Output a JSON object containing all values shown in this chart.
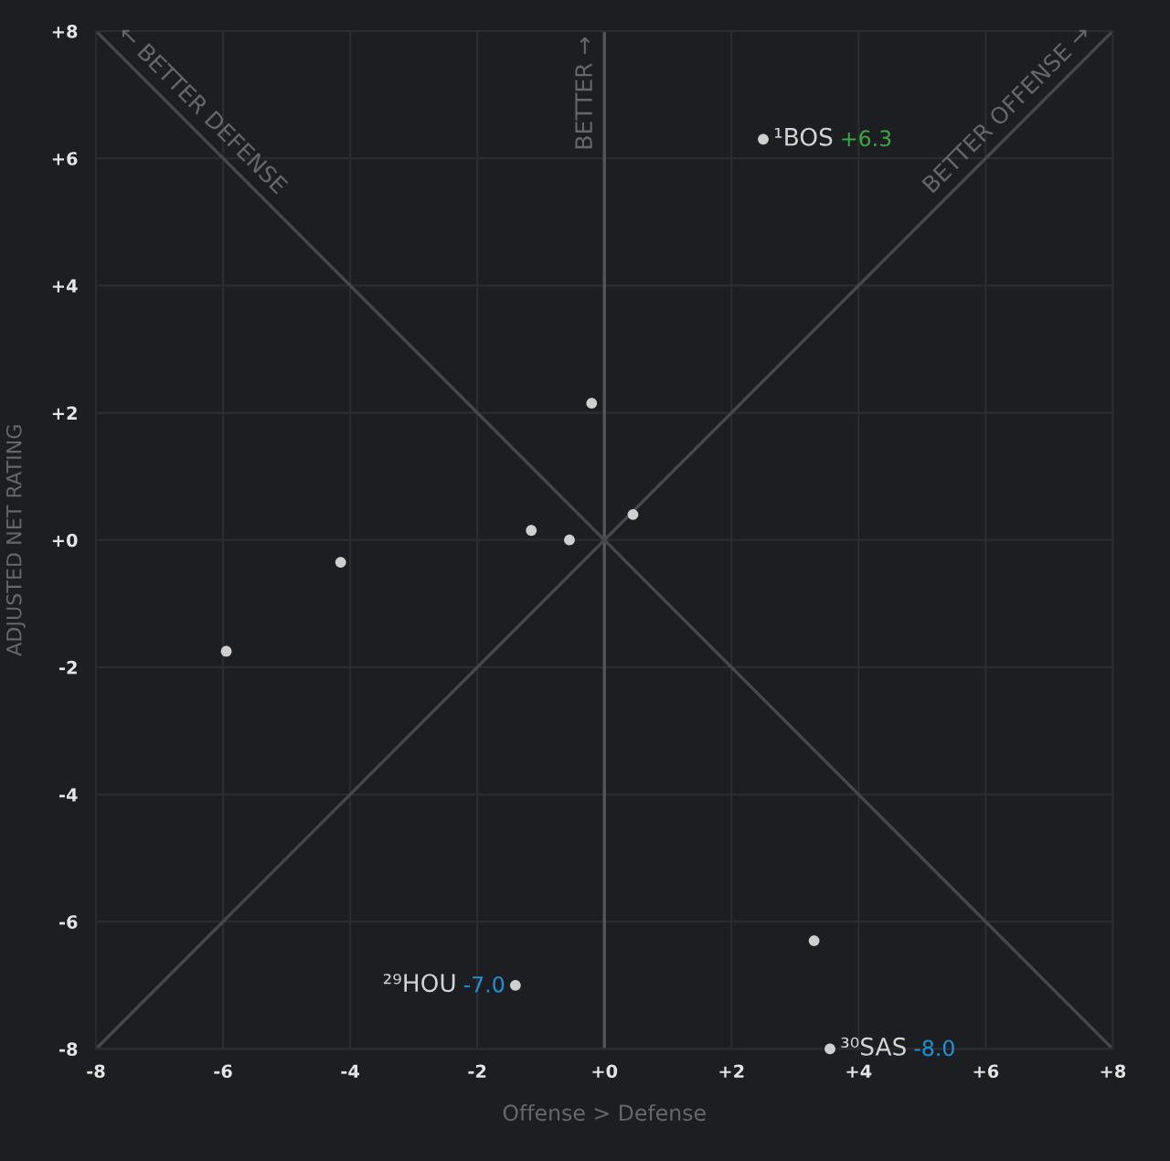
{
  "chart_data": {
    "type": "scatter",
    "xlabel": "Offense > Defense",
    "ylabel": "ADJUSTED NET RATING",
    "xlim": [
      -8,
      8
    ],
    "ylim": [
      -8,
      8
    ],
    "xticks": [
      -8,
      -6,
      -4,
      -2,
      {
        "value": 0,
        "label": "+0"
      },
      {
        "value": 2,
        "label": "+2"
      },
      {
        "value": 4,
        "label": "+4"
      },
      {
        "value": 6,
        "label": "+6"
      },
      {
        "value": 8,
        "label": "+8"
      }
    ],
    "yticks": [
      -8,
      -6,
      -4,
      -2,
      {
        "value": 0,
        "label": "+0"
      },
      {
        "value": 2,
        "label": "+2"
      },
      {
        "value": 4,
        "label": "+4"
      },
      {
        "value": 6,
        "label": "+6"
      },
      {
        "value": 8,
        "label": "+8"
      }
    ],
    "grid": true,
    "marker": "circle",
    "series": [
      {
        "color": "#cfcfd1",
        "x": [
          2.5,
          -1.4,
          3.55,
          -4.15,
          -5.95,
          -0.55,
          -1.15,
          0.45,
          -0.2,
          3.3
        ],
        "values": [
          6.3,
          -7.0,
          -8.0,
          -0.35,
          -1.75,
          0,
          0.15,
          0.4,
          2.15,
          -6.3
        ]
      },
      {
        "type": "line",
        "name": "← BETTER DEFENSE",
        "color": "#47484c",
        "marker": "none",
        "x": [
          -8,
          8
        ],
        "values": [
          8,
          -8
        ]
      },
      {
        "type": "line",
        "name": "BETTER OFFENSE →",
        "color": "#47484c",
        "marker": "none",
        "x": [
          -8,
          8
        ],
        "values": [
          -8,
          8
        ]
      }
    ],
    "ref_lines": [
      {
        "axis": "x",
        "value": 0,
        "label": "BETTER →",
        "color": "#55565a"
      }
    ],
    "annotations": [
      {
        "text": "¹BOS",
        "x": 2.5,
        "y": 6.3
      },
      "+6.3",
      {
        "text": "²⁹HOU",
        "x": -1.4,
        "y": -7.0
      },
      "-7.0",
      {
        "text": "³⁰SAS",
        "x": 3.55,
        "y": -8.0
      },
      "-8.0"
    ]
  }
}
